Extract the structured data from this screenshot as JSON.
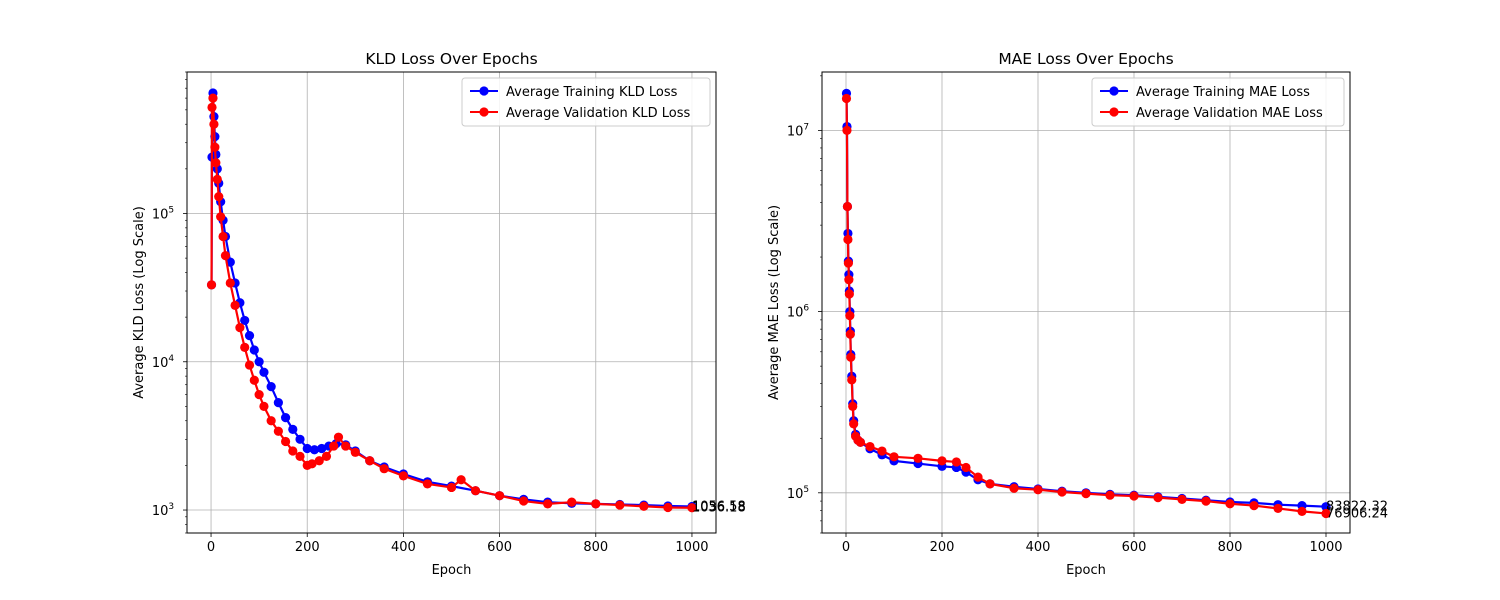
{
  "chart_data": [
    {
      "type": "line",
      "title": "KLD Loss Over Epochs",
      "xlabel": "Epoch",
      "ylabel": "Average KLD Loss (Log Scale)",
      "yscale": "log",
      "xlim": [
        -50,
        1050
      ],
      "ylim": [
        700,
        900000
      ],
      "grid": true,
      "legend_position": "top-right",
      "x_ticks": [
        "0",
        "200",
        "400",
        "600",
        "800",
        "1000"
      ],
      "y_ticks": [
        {
          "value": 1000,
          "base": "10",
          "exp": "3"
        },
        {
          "value": 10000,
          "base": "10",
          "exp": "4"
        },
        {
          "value": 100000,
          "base": "10",
          "exp": "5"
        }
      ],
      "series": [
        {
          "name": "Average Training KLD Loss",
          "color": "#0000ff",
          "points": [
            [
              1,
              33000
            ],
            [
              2,
              240000
            ],
            [
              4,
              650000
            ],
            [
              6,
              450000
            ],
            [
              8,
              330000
            ],
            [
              10,
              250000
            ],
            [
              13,
              200000
            ],
            [
              16,
              160000
            ],
            [
              20,
              120000
            ],
            [
              25,
              90000
            ],
            [
              30,
              70000
            ],
            [
              40,
              47000
            ],
            [
              50,
              34000
            ],
            [
              60,
              25000
            ],
            [
              70,
              19000
            ],
            [
              80,
              15000
            ],
            [
              90,
              12000
            ],
            [
              100,
              10000
            ],
            [
              110,
              8500
            ],
            [
              125,
              6800
            ],
            [
              140,
              5300
            ],
            [
              155,
              4200
            ],
            [
              170,
              3500
            ],
            [
              185,
              3000
            ],
            [
              200,
              2600
            ],
            [
              215,
              2550
            ],
            [
              230,
              2600
            ],
            [
              245,
              2700
            ],
            [
              260,
              2800
            ],
            [
              280,
              2750
            ],
            [
              300,
              2500
            ],
            [
              330,
              2150
            ],
            [
              360,
              1950
            ],
            [
              400,
              1750
            ],
            [
              450,
              1550
            ],
            [
              500,
              1450
            ],
            [
              550,
              1350
            ],
            [
              600,
              1250
            ],
            [
              650,
              1180
            ],
            [
              700,
              1130
            ],
            [
              750,
              1110
            ],
            [
              800,
              1100
            ],
            [
              850,
              1090
            ],
            [
              900,
              1080
            ],
            [
              950,
              1065
            ],
            [
              1000,
              1056.58
            ]
          ],
          "end_label": "1056.58"
        },
        {
          "name": "Average Validation KLD Loss",
          "color": "#ff0000",
          "points": [
            [
              1,
              33000
            ],
            [
              2,
              520000
            ],
            [
              4,
              600000
            ],
            [
              6,
              400000
            ],
            [
              8,
              280000
            ],
            [
              10,
              220000
            ],
            [
              13,
              170000
            ],
            [
              16,
              130000
            ],
            [
              20,
              95000
            ],
            [
              25,
              70000
            ],
            [
              30,
              52000
            ],
            [
              40,
              34000
            ],
            [
              50,
              24000
            ],
            [
              60,
              17000
            ],
            [
              70,
              12500
            ],
            [
              80,
              9500
            ],
            [
              90,
              7500
            ],
            [
              100,
              6000
            ],
            [
              110,
              5000
            ],
            [
              125,
              4000
            ],
            [
              140,
              3400
            ],
            [
              155,
              2900
            ],
            [
              170,
              2500
            ],
            [
              185,
              2300
            ],
            [
              200,
              2000
            ],
            [
              210,
              2050
            ],
            [
              225,
              2150
            ],
            [
              240,
              2300
            ],
            [
              255,
              2700
            ],
            [
              265,
              3100
            ],
            [
              280,
              2700
            ],
            [
              300,
              2450
            ],
            [
              330,
              2150
            ],
            [
              360,
              1900
            ],
            [
              400,
              1700
            ],
            [
              450,
              1500
            ],
            [
              500,
              1420
            ],
            [
              520,
              1600
            ],
            [
              550,
              1350
            ],
            [
              600,
              1250
            ],
            [
              650,
              1150
            ],
            [
              700,
              1100
            ],
            [
              750,
              1130
            ],
            [
              800,
              1100
            ],
            [
              850,
              1080
            ],
            [
              900,
              1060
            ],
            [
              950,
              1040
            ],
            [
              1000,
              1036.18
            ]
          ],
          "end_label": "1036.18"
        }
      ]
    },
    {
      "type": "line",
      "title": "MAE Loss Over Epochs",
      "xlabel": "Epoch",
      "ylabel": "Average MAE Loss (Log Scale)",
      "yscale": "log",
      "xlim": [
        -50,
        1050
      ],
      "ylim": [
        60000,
        21000000
      ],
      "grid": true,
      "legend_position": "top-right",
      "x_ticks": [
        "0",
        "200",
        "400",
        "600",
        "800",
        "1000"
      ],
      "y_ticks": [
        {
          "value": 100000,
          "base": "10",
          "exp": "5"
        },
        {
          "value": 1000000,
          "base": "10",
          "exp": "6"
        },
        {
          "value": 10000000,
          "base": "10",
          "exp": "7"
        }
      ],
      "series": [
        {
          "name": "Average Training MAE Loss",
          "color": "#0000ff",
          "points": [
            [
              1,
              16000000
            ],
            [
              2,
              10500000
            ],
            [
              3,
              3800000
            ],
            [
              4,
              2700000
            ],
            [
              5,
              1900000
            ],
            [
              6,
              1600000
            ],
            [
              7,
              1300000
            ],
            [
              8,
              1000000
            ],
            [
              9,
              780000
            ],
            [
              10,
              580000
            ],
            [
              12,
              440000
            ],
            [
              14,
              310000
            ],
            [
              16,
              250000
            ],
            [
              20,
              210000
            ],
            [
              25,
              195000
            ],
            [
              30,
              190000
            ],
            [
              50,
              175000
            ],
            [
              75,
              162000
            ],
            [
              100,
              150000
            ],
            [
              150,
              145000
            ],
            [
              200,
              140000
            ],
            [
              230,
              138000
            ],
            [
              250,
              130000
            ],
            [
              275,
              118000
            ],
            [
              300,
              112000
            ],
            [
              350,
              108000
            ],
            [
              400,
              105000
            ],
            [
              450,
              102000
            ],
            [
              500,
              100000
            ],
            [
              550,
              98000
            ],
            [
              600,
              97000
            ],
            [
              650,
              95000
            ],
            [
              700,
              93000
            ],
            [
              750,
              91000
            ],
            [
              800,
              89000
            ],
            [
              850,
              88000
            ],
            [
              900,
              86000
            ],
            [
              950,
              85000
            ],
            [
              1000,
              83822.32
            ]
          ],
          "end_label": "83822.32"
        },
        {
          "name": "Average Validation MAE Loss",
          "color": "#ff0000",
          "points": [
            [
              1,
              15000000
            ],
            [
              2,
              10000000
            ],
            [
              3,
              3800000
            ],
            [
              4,
              2500000
            ],
            [
              5,
              1850000
            ],
            [
              6,
              1500000
            ],
            [
              7,
              1250000
            ],
            [
              8,
              950000
            ],
            [
              9,
              750000
            ],
            [
              10,
              560000
            ],
            [
              12,
              420000
            ],
            [
              14,
              300000
            ],
            [
              16,
              240000
            ],
            [
              20,
              205000
            ],
            [
              25,
              195000
            ],
            [
              30,
              190000
            ],
            [
              50,
              180000
            ],
            [
              75,
              170000
            ],
            [
              100,
              158000
            ],
            [
              150,
              155000
            ],
            [
              200,
              150000
            ],
            [
              230,
              148000
            ],
            [
              250,
              138000
            ],
            [
              275,
              122000
            ],
            [
              300,
              112000
            ],
            [
              350,
              106000
            ],
            [
              400,
              104000
            ],
            [
              450,
              101000
            ],
            [
              500,
              99000
            ],
            [
              550,
              97000
            ],
            [
              600,
              96000
            ],
            [
              650,
              94000
            ],
            [
              700,
              92000
            ],
            [
              750,
              90000
            ],
            [
              800,
              87000
            ],
            [
              850,
              85000
            ],
            [
              900,
              82000
            ],
            [
              950,
              79000
            ],
            [
              1000,
              76906.24
            ]
          ],
          "end_label": "76906.24"
        }
      ]
    }
  ]
}
